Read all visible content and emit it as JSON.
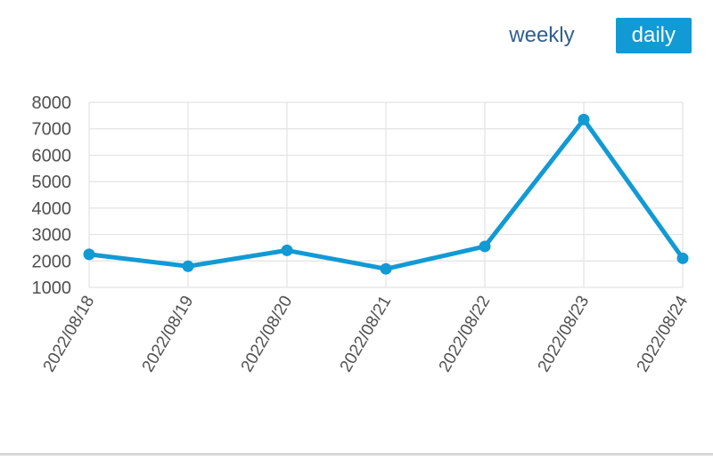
{
  "controls": {
    "weekly_label": "weekly",
    "daily_label": "daily",
    "active": "daily"
  },
  "colors": {
    "series": "#119ad4",
    "active_button": "#119ad4",
    "grid": "#e3e3e3",
    "axis_text": "#505050"
  },
  "chart_data": {
    "type": "line",
    "x": [
      "2022/08/18",
      "2022/08/19",
      "2022/08/20",
      "2022/08/21",
      "2022/08/22",
      "2022/08/23",
      "2022/08/24"
    ],
    "series": [
      {
        "values": [
          2250,
          1800,
          2400,
          1700,
          2550,
          7350,
          2100
        ]
      }
    ],
    "ylim": [
      1000,
      8000
    ],
    "yticks": [
      1000,
      2000,
      3000,
      4000,
      5000,
      6000,
      7000,
      8000
    ],
    "grid": true,
    "legend": false
  }
}
